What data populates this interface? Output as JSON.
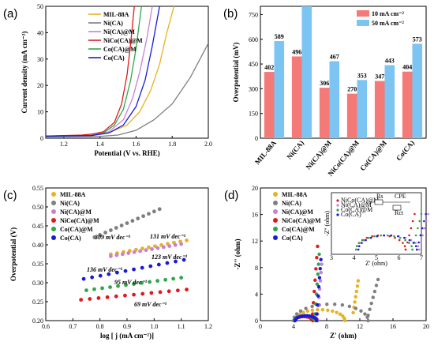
{
  "colors": {
    "MIL-88A": "#e8b21a",
    "Ni(CA)": "#7f7f7f",
    "Ni(CA)@M": "#c97fd8",
    "NiCo(CA)@M": "#e01a1a",
    "Co(CA)@M": "#2ea84a",
    "Co(CA)": "#1a1ad8",
    "bar10": "#f47a78",
    "bar50": "#7cc4f2"
  },
  "chart_data": [
    {
      "id": "a",
      "type": "line",
      "panel_label": "(a)",
      "xlabel": "Potential (V vs. RHE)",
      "ylabel": "Current density (mA cm⁻²)",
      "xlim": [
        1.1,
        2.0
      ],
      "ylim": [
        0,
        50
      ],
      "xticks": [
        1.2,
        1.4,
        1.6,
        1.8,
        2.0
      ],
      "yticks": [
        0,
        10,
        20,
        30,
        40,
        50
      ],
      "legend": [
        "MIL-88A",
        "Ni(CA)",
        "Ni(CA)@M",
        "NiCo(CA)@M",
        "Co(CA)@M",
        "Co(CA)"
      ],
      "series": [
        {
          "name": "MIL-88A",
          "x": [
            1.1,
            1.35,
            1.45,
            1.55,
            1.62,
            1.68,
            1.73,
            1.77,
            1.81
          ],
          "y": [
            0.8,
            1.0,
            2,
            5,
            10,
            18,
            28,
            40,
            50
          ]
        },
        {
          "name": "Ni(CA)",
          "x": [
            1.1,
            1.4,
            1.5,
            1.6,
            1.7,
            1.8,
            1.9,
            2.0
          ],
          "y": [
            0.5,
            0.7,
            1.2,
            3,
            7,
            13,
            23,
            36
          ]
        },
        {
          "name": "Ni(CA)@M",
          "x": [
            1.1,
            1.35,
            1.45,
            1.53,
            1.58,
            1.62,
            1.66,
            1.69
          ],
          "y": [
            0.8,
            1.0,
            2.5,
            7,
            15,
            25,
            38,
            50
          ]
        },
        {
          "name": "NiCo(CA)@M",
          "x": [
            1.1,
            1.3,
            1.36,
            1.42,
            1.48,
            1.52,
            1.55,
            1.57,
            1.59
          ],
          "y": [
            0.8,
            1.2,
            1.6,
            2.5,
            6,
            13,
            24,
            36,
            50
          ]
        },
        {
          "name": "Co(CA)@M",
          "x": [
            1.1,
            1.35,
            1.42,
            1.48,
            1.53,
            1.57,
            1.6,
            1.63
          ],
          "y": [
            0.8,
            1.0,
            2,
            5,
            11,
            22,
            34,
            50
          ]
        },
        {
          "name": "Co(CA)",
          "x": [
            1.1,
            1.35,
            1.45,
            1.53,
            1.6,
            1.65,
            1.69,
            1.73
          ],
          "y": [
            0.8,
            1.0,
            2,
            5,
            12,
            22,
            35,
            50
          ]
        }
      ]
    },
    {
      "id": "b",
      "type": "bar",
      "panel_label": "(b)",
      "ylabel": "Overpotential (mV)",
      "ylim": [
        0,
        800
      ],
      "yticks": [
        0,
        150,
        300,
        450,
        600,
        750
      ],
      "categories": [
        "MIL-88A",
        "Ni(CA)",
        "Ni(CA)@M",
        "NiCo(CA)@M",
        "Co(CA)@M",
        "Co(CA)"
      ],
      "series": [
        {
          "name": "10 mA cm⁻²",
          "values": [
            402,
            496,
            306,
            270,
            347,
            404
          ]
        },
        {
          "name": "50 mA cm⁻²",
          "values": [
            589,
            800,
            467,
            353,
            443,
            573
          ]
        }
      ],
      "value_labels": [
        [
          "402",
          "496",
          "306",
          "270",
          "347",
          "404"
        ],
        [
          "589",
          "",
          "467",
          "353",
          "443",
          "573"
        ]
      ]
    },
    {
      "id": "c",
      "type": "scatter",
      "panel_label": "(c)",
      "xlabel": "log [ j (mA cm⁻²)]",
      "ylabel": "Overpotential (V)",
      "xlim": [
        0.6,
        1.2
      ],
      "ylim": [
        0.2,
        0.55
      ],
      "xticks": [
        0.6,
        0.7,
        0.8,
        0.9,
        1.0,
        1.1,
        1.2
      ],
      "yticks": [
        0.2,
        0.25,
        0.3,
        0.35,
        0.4,
        0.45,
        0.5,
        0.55
      ],
      "legend": [
        "MIL-88A",
        "Ni(CA)",
        "Ni(CA)@M",
        "NiCo(CA)@M",
        "Co(CA)@M",
        "Co(CA)"
      ],
      "series": [
        {
          "name": "MIL-88A",
          "x0": 0.84,
          "x1": 1.12,
          "y0": 0.375,
          "slope": 0.131
        },
        {
          "name": "Ni(CA)",
          "x0": 0.78,
          "x1": 1.02,
          "y0": 0.42,
          "slope": 0.309
        },
        {
          "name": "Ni(CA)@M",
          "x0": 0.84,
          "x1": 1.1,
          "y0": 0.37,
          "slope": 0.123
        },
        {
          "name": "NiCo(CA)@M",
          "x0": 0.73,
          "x1": 1.12,
          "y0": 0.255,
          "slope": 0.069
        },
        {
          "name": "Co(CA)@M",
          "x0": 0.75,
          "x1": 1.1,
          "y0": 0.28,
          "slope": 0.095
        },
        {
          "name": "Co(CA)",
          "x0": 0.74,
          "x1": 1.11,
          "y0": 0.31,
          "slope": 0.136
        }
      ],
      "annotations": [
        "309 mV dec⁻¹",
        "131 mV dec⁻¹",
        "123 mV dec⁻¹",
        "136 mV dec⁻¹",
        "95 mV dec⁻¹",
        "69 mV dec⁻¹"
      ]
    },
    {
      "id": "d",
      "type": "scatter",
      "panel_label": "(d)",
      "xlabel": "Z'  (ohm)",
      "ylabel": "-Z''  (ohm)",
      "xlim": [
        0,
        20
      ],
      "ylim": [
        0,
        20
      ],
      "xticks": [
        0,
        4,
        8,
        12,
        16,
        20
      ],
      "yticks": [
        0,
        4,
        8,
        12,
        16,
        20
      ],
      "legend": [
        "MIL-88A",
        "Ni(CA)",
        "Ni(CA)@M",
        "NiCo(CA)@M",
        "Co(CA)@M",
        "Co(CA)"
      ],
      "inset": {
        "xlabel": "Z' (ohm)",
        "ylabel": "-Z'' (ohm)",
        "xticks": [
          3,
          4,
          5,
          6,
          7
        ],
        "legend": [
          "NiCo(CA)@M",
          "Ni(CA)@M",
          "Co(CA)@M",
          "Co(CA)"
        ],
        "circuit": [
          "Rs",
          "CPE",
          "Rct"
        ]
      },
      "series": [
        {
          "name": "MIL-88A",
          "r0": 4.2,
          "R": 6.0,
          "tail": [
            11.2,
            1.2,
            11.8,
            6.0
          ]
        },
        {
          "name": "Ni(CA)",
          "r0": 4.0,
          "R": 9.0,
          "tail": [
            13.0,
            0.8,
            14.2,
            6.2
          ]
        },
        {
          "name": "Ni(CA)@M",
          "r0": 4.1,
          "R": 2.8,
          "tail": [
            6.9,
            1.0,
            7.4,
            8.5
          ]
        },
        {
          "name": "NiCo(CA)@M",
          "r0": 4.1,
          "R": 2.2,
          "tail": [
            6.3,
            1.0,
            6.9,
            11.2
          ]
        },
        {
          "name": "Co(CA)@M",
          "r0": 4.1,
          "R": 2.5,
          "tail": [
            6.6,
            1.0,
            7.1,
            10.0
          ]
        },
        {
          "name": "Co(CA)",
          "r0": 4.2,
          "R": 2.6,
          "tail": [
            6.8,
            1.0,
            7.3,
            9.2
          ]
        }
      ]
    }
  ]
}
